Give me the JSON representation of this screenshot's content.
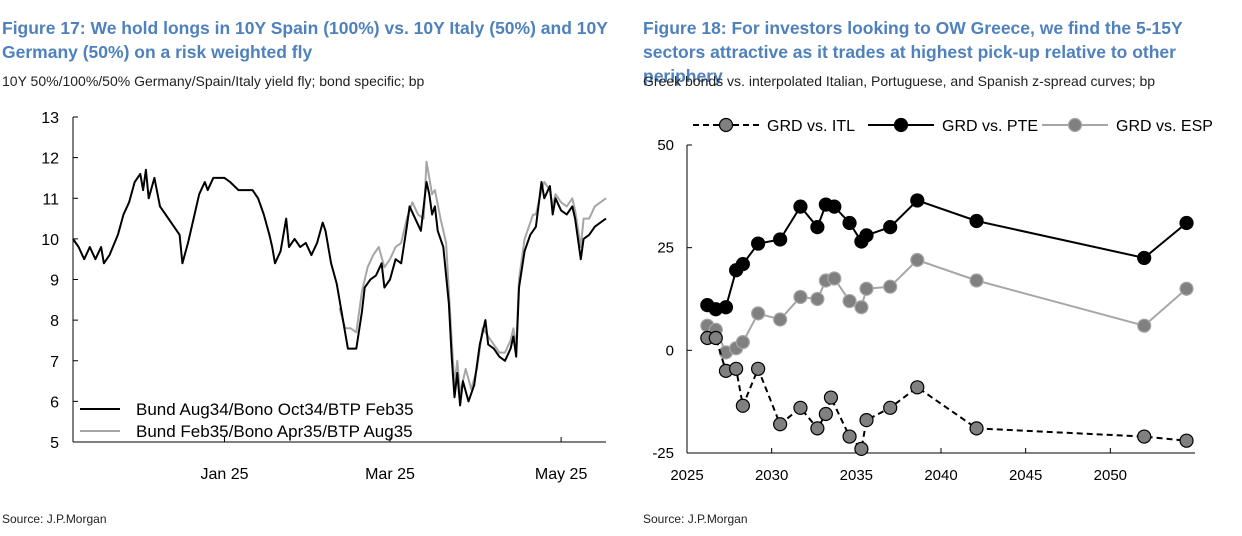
{
  "figures": [
    {
      "title": "Figure 17: We hold longs in 10Y Spain (100%) vs. 10Y Italy (50%) and 10Y Germany (50%) on a risk weighted fly",
      "subtitle": "10Y 50%/100%/50% Germany/Spain/Italy yield fly; bond specific; bp",
      "source": "Source: J.P.Morgan"
    },
    {
      "title": "Figure 18: For investors looking to OW Greece, we find the 5-15Y sectors attractive as it trades at highest pick-up relative to other periphery",
      "subtitle": "Greek bonds vs. interpolated Italian, Portuguese, and Spanish z-spread curves; bp",
      "source": "Source: J.P.Morgan"
    }
  ],
  "colors": {
    "title": "#4f81bd",
    "black": "#000000",
    "gray": "#a6a6a6",
    "gray_marker": "#808080"
  },
  "chart_data": [
    {
      "type": "line",
      "x_unit": "date",
      "x_range": [
        "2024-11-22",
        "2025-05-31"
      ],
      "x_ticks": [
        {
          "x": "2025-01-15",
          "label": "Jan 25"
        },
        {
          "x": "2025-03-15",
          "label": "Mar 25"
        },
        {
          "x": "2025-05-15",
          "label": "May 25"
        }
      ],
      "ylim": [
        5,
        13
      ],
      "y_ticks": [
        5,
        6,
        7,
        8,
        9,
        10,
        11,
        12,
        13
      ],
      "legend_position": "bottom-left",
      "series": [
        {
          "name": "Bund Aug34/Bono Oct34/BTP Feb35",
          "color": "#000000",
          "points": [
            [
              "2024-11-22",
              10.0
            ],
            [
              "2024-11-24",
              9.8
            ],
            [
              "2024-11-26",
              9.5
            ],
            [
              "2024-11-28",
              9.8
            ],
            [
              "2024-11-30",
              9.5
            ],
            [
              "2024-12-02",
              9.8
            ],
            [
              "2024-12-03",
              9.4
            ],
            [
              "2024-12-05",
              9.6
            ],
            [
              "2024-12-08",
              10.1
            ],
            [
              "2024-12-10",
              10.6
            ],
            [
              "2024-12-12",
              10.9
            ],
            [
              "2024-12-14",
              11.4
            ],
            [
              "2024-12-16",
              11.6
            ],
            [
              "2024-12-17",
              11.2
            ],
            [
              "2024-12-18",
              11.7
            ],
            [
              "2024-12-19",
              11.0
            ],
            [
              "2024-12-21",
              11.5
            ],
            [
              "2024-12-23",
              10.8
            ],
            [
              "2024-12-25",
              10.6
            ],
            [
              "2024-12-28",
              10.3
            ],
            [
              "2024-12-30",
              10.1
            ],
            [
              "2024-12-31",
              9.4
            ],
            [
              "2025-01-02",
              9.9
            ],
            [
              "2025-01-04",
              10.5
            ],
            [
              "2025-01-06",
              11.1
            ],
            [
              "2025-01-08",
              11.4
            ],
            [
              "2025-01-09",
              11.2
            ],
            [
              "2025-01-11",
              11.5
            ],
            [
              "2025-01-15",
              11.5
            ],
            [
              "2025-01-17",
              11.4
            ],
            [
              "2025-01-20",
              11.2
            ],
            [
              "2025-01-25",
              11.2
            ],
            [
              "2025-01-27",
              11.0
            ],
            [
              "2025-01-29",
              10.6
            ],
            [
              "2025-01-31",
              10.1
            ],
            [
              "2025-02-01",
              9.8
            ],
            [
              "2025-02-02",
              9.4
            ],
            [
              "2025-02-04",
              9.7
            ],
            [
              "2025-02-06",
              10.5
            ],
            [
              "2025-02-07",
              9.8
            ],
            [
              "2025-02-09",
              10.0
            ],
            [
              "2025-02-11",
              9.8
            ],
            [
              "2025-02-13",
              9.9
            ],
            [
              "2025-02-15",
              9.6
            ],
            [
              "2025-02-17",
              9.9
            ],
            [
              "2025-02-19",
              10.4
            ],
            [
              "2025-02-20",
              10.2
            ],
            [
              "2025-02-22",
              9.4
            ],
            [
              "2025-02-24",
              8.9
            ],
            [
              "2025-02-26",
              8.1
            ],
            [
              "2025-02-28",
              7.3
            ],
            [
              "2025-03-02",
              7.3
            ],
            [
              "2025-03-03",
              7.3
            ],
            [
              "2025-03-05",
              8.2
            ],
            [
              "2025-03-06",
              8.8
            ],
            [
              "2025-03-08",
              9.0
            ],
            [
              "2025-03-10",
              9.1
            ],
            [
              "2025-03-12",
              9.4
            ],
            [
              "2025-03-13",
              8.8
            ],
            [
              "2025-03-15",
              9.0
            ],
            [
              "2025-03-17",
              9.5
            ],
            [
              "2025-03-19",
              9.4
            ],
            [
              "2025-03-21",
              10.3
            ],
            [
              "2025-03-22",
              10.8
            ],
            [
              "2025-03-24",
              10.5
            ],
            [
              "2025-03-26",
              10.2
            ],
            [
              "2025-03-28",
              11.4
            ],
            [
              "2025-03-29",
              11.1
            ],
            [
              "2025-03-30",
              10.6
            ],
            [
              "2025-03-31",
              10.8
            ],
            [
              "2025-04-01",
              10.2
            ],
            [
              "2025-04-03",
              9.8
            ],
            [
              "2025-04-05",
              8.4
            ],
            [
              "2025-04-06",
              7.1
            ],
            [
              "2025-04-07",
              6.1
            ],
            [
              "2025-04-08",
              6.7
            ],
            [
              "2025-04-09",
              5.9
            ],
            [
              "2025-04-10",
              6.5
            ],
            [
              "2025-04-12",
              6.0
            ],
            [
              "2025-04-14",
              6.4
            ],
            [
              "2025-04-16",
              7.4
            ],
            [
              "2025-04-18",
              8.0
            ],
            [
              "2025-04-19",
              7.4
            ],
            [
              "2025-04-21",
              7.3
            ],
            [
              "2025-04-23",
              7.1
            ],
            [
              "2025-04-25",
              7.0
            ],
            [
              "2025-04-27",
              7.3
            ],
            [
              "2025-04-28",
              7.6
            ],
            [
              "2025-04-29",
              7.1
            ],
            [
              "2025-04-30",
              8.8
            ],
            [
              "2025-05-02",
              9.7
            ],
            [
              "2025-05-04",
              10.1
            ],
            [
              "2025-05-05",
              10.2
            ],
            [
              "2025-05-06",
              10.3
            ],
            [
              "2025-05-08",
              11.4
            ],
            [
              "2025-05-09",
              11.0
            ],
            [
              "2025-05-11",
              11.3
            ],
            [
              "2025-05-12",
              10.6
            ],
            [
              "2025-05-13",
              11.0
            ],
            [
              "2025-05-15",
              10.7
            ],
            [
              "2025-05-17",
              10.6
            ],
            [
              "2025-05-19",
              10.8
            ],
            [
              "2025-05-20",
              10.5
            ],
            [
              "2025-05-22",
              9.5
            ],
            [
              "2025-05-23",
              10.0
            ],
            [
              "2025-05-25",
              10.1
            ],
            [
              "2025-05-27",
              10.3
            ],
            [
              "2025-05-29",
              10.4
            ],
            [
              "2025-05-31",
              10.5
            ]
          ]
        },
        {
          "name": "Bund Feb35/Bono Apr35/BTP Aug35",
          "color": "#a6a6a6",
          "points": [
            [
              "2025-02-25",
              8.3
            ],
            [
              "2025-02-27",
              7.8
            ],
            [
              "2025-03-01",
              7.8
            ],
            [
              "2025-03-03",
              7.7
            ],
            [
              "2025-03-05",
              8.7
            ],
            [
              "2025-03-07",
              9.3
            ],
            [
              "2025-03-09",
              9.6
            ],
            [
              "2025-03-11",
              9.8
            ],
            [
              "2025-03-13",
              9.3
            ],
            [
              "2025-03-15",
              9.5
            ],
            [
              "2025-03-17",
              9.8
            ],
            [
              "2025-03-19",
              9.9
            ],
            [
              "2025-03-21",
              10.5
            ],
            [
              "2025-03-23",
              10.9
            ],
            [
              "2025-03-25",
              10.6
            ],
            [
              "2025-03-27",
              10.5
            ],
            [
              "2025-03-28",
              11.9
            ],
            [
              "2025-03-30",
              11.1
            ],
            [
              "2025-03-31",
              11.2
            ],
            [
              "2025-04-02",
              10.5
            ],
            [
              "2025-04-04",
              9.9
            ],
            [
              "2025-04-06",
              7.5
            ],
            [
              "2025-04-07",
              6.4
            ],
            [
              "2025-04-08",
              7.0
            ],
            [
              "2025-04-09",
              6.2
            ],
            [
              "2025-04-11",
              6.8
            ],
            [
              "2025-04-13",
              6.3
            ],
            [
              "2025-04-15",
              6.8
            ],
            [
              "2025-04-17",
              7.8
            ],
            [
              "2025-04-19",
              7.6
            ],
            [
              "2025-04-21",
              7.4
            ],
            [
              "2025-04-23",
              7.2
            ],
            [
              "2025-04-25",
              7.2
            ],
            [
              "2025-04-27",
              7.5
            ],
            [
              "2025-04-28",
              7.8
            ],
            [
              "2025-04-29",
              7.3
            ],
            [
              "2025-04-30",
              9.0
            ],
            [
              "2025-05-02",
              10.0
            ],
            [
              "2025-05-04",
              10.4
            ],
            [
              "2025-05-05",
              10.6
            ],
            [
              "2025-05-06",
              10.6
            ],
            [
              "2025-05-08",
              11.2
            ],
            [
              "2025-05-09",
              11.4
            ],
            [
              "2025-05-11",
              11.2
            ],
            [
              "2025-05-12",
              10.8
            ],
            [
              "2025-05-13",
              11.1
            ],
            [
              "2025-05-15",
              10.9
            ],
            [
              "2025-05-17",
              10.8
            ],
            [
              "2025-05-19",
              11.0
            ],
            [
              "2025-05-20",
              10.7
            ],
            [
              "2025-05-22",
              9.8
            ],
            [
              "2025-05-23",
              10.5
            ],
            [
              "2025-05-25",
              10.5
            ],
            [
              "2025-05-27",
              10.8
            ],
            [
              "2025-05-29",
              10.9
            ],
            [
              "2025-05-31",
              11.0
            ]
          ]
        }
      ]
    },
    {
      "type": "line",
      "xlim": [
        2025,
        2055
      ],
      "x_ticks": [
        2025,
        2030,
        2035,
        2040,
        2045,
        2050
      ],
      "ylim": [
        -25,
        50
      ],
      "y_ticks": [
        -25,
        0,
        25,
        50
      ],
      "legend_position": "top",
      "series": [
        {
          "name": "GRD vs. ITL",
          "style": "dashed",
          "color": "#000000",
          "marker_fill": "#808080",
          "points": [
            [
              2026.2,
              3
            ],
            [
              2026.7,
              3
            ],
            [
              2027.3,
              -5
            ],
            [
              2027.9,
              -4.5
            ],
            [
              2028.3,
              -13.5
            ],
            [
              2029.2,
              -4.5
            ],
            [
              2030.5,
              -18
            ],
            [
              2031.7,
              -14
            ],
            [
              2032.7,
              -19
            ],
            [
              2033.2,
              -15.5
            ],
            [
              2033.5,
              -11.5
            ],
            [
              2034.6,
              -21
            ],
            [
              2035.3,
              -24
            ],
            [
              2035.6,
              -17
            ],
            [
              2037.0,
              -14
            ],
            [
              2038.6,
              -9
            ],
            [
              2042.1,
              -19
            ],
            [
              2052.0,
              -21
            ],
            [
              2054.5,
              -22
            ]
          ]
        },
        {
          "name": "GRD vs. PTE",
          "style": "solid",
          "color": "#000000",
          "marker_fill": "#000000",
          "points": [
            [
              2026.2,
              11
            ],
            [
              2026.7,
              10
            ],
            [
              2027.3,
              10.5
            ],
            [
              2027.9,
              19.5
            ],
            [
              2028.3,
              21
            ],
            [
              2029.2,
              26
            ],
            [
              2030.5,
              27
            ],
            [
              2031.7,
              35
            ],
            [
              2032.7,
              30
            ],
            [
              2033.2,
              35.5
            ],
            [
              2033.7,
              35
            ],
            [
              2034.6,
              31
            ],
            [
              2035.3,
              26.5
            ],
            [
              2035.6,
              28
            ],
            [
              2037.0,
              30
            ],
            [
              2038.6,
              36.5
            ],
            [
              2042.1,
              31.5
            ],
            [
              2052.0,
              22.5
            ],
            [
              2054.5,
              31
            ]
          ]
        },
        {
          "name": "GRD vs. ESP",
          "style": "solid",
          "color": "#a6a6a6",
          "marker_fill": "#808080",
          "points": [
            [
              2026.2,
              6
            ],
            [
              2026.7,
              5
            ],
            [
              2027.3,
              -0.5
            ],
            [
              2027.9,
              0.5
            ],
            [
              2028.3,
              2
            ],
            [
              2029.2,
              9
            ],
            [
              2030.5,
              7.5
            ],
            [
              2031.7,
              13
            ],
            [
              2032.7,
              12.5
            ],
            [
              2033.2,
              17
            ],
            [
              2033.7,
              17.5
            ],
            [
              2034.6,
              12
            ],
            [
              2035.3,
              10.5
            ],
            [
              2035.6,
              15
            ],
            [
              2037.0,
              15.5
            ],
            [
              2038.6,
              22
            ],
            [
              2042.1,
              17
            ],
            [
              2052.0,
              6
            ],
            [
              2054.5,
              15
            ]
          ]
        }
      ]
    }
  ]
}
